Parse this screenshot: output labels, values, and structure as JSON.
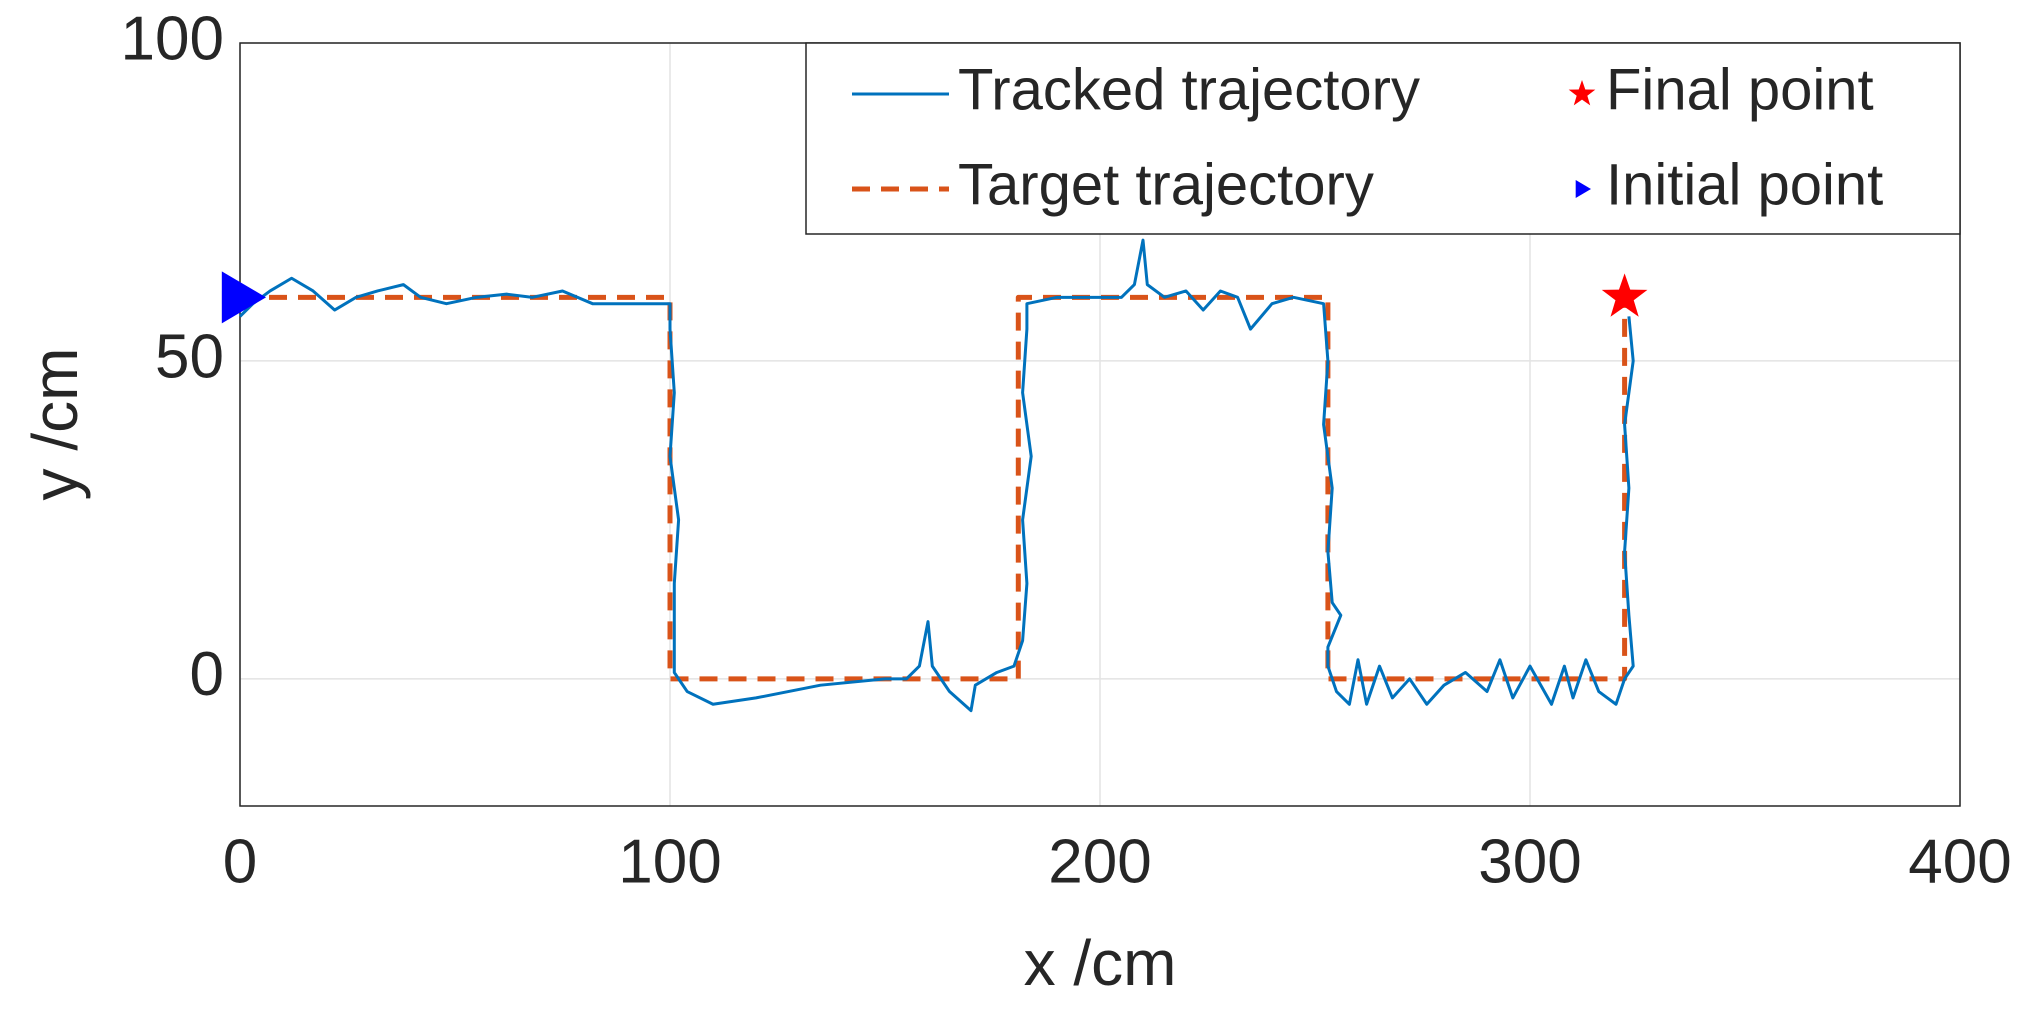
{
  "chart_data": {
    "type": "line",
    "xlabel": "x /cm",
    "ylabel": "y /cm",
    "xlim": [
      0,
      400
    ],
    "ylim": [
      -20,
      100
    ],
    "xticks": [
      0,
      100,
      200,
      300,
      400
    ],
    "yticks": [
      0,
      50,
      100
    ],
    "grid": true,
    "legend": "upper right",
    "series": [
      {
        "name": "Tracked trajectory",
        "color": "#0072bd",
        "style": "solid",
        "x": [
          0,
          3,
          7,
          12,
          17,
          22,
          27,
          32,
          38,
          42,
          48,
          55,
          62,
          68,
          75,
          82,
          90,
          97,
          100,
          100,
          101,
          100,
          102,
          101,
          101,
          101,
          104,
          110,
          120,
          135,
          150,
          155,
          158,
          160,
          161,
          165,
          170,
          171,
          176,
          180,
          182,
          183,
          182,
          184,
          182,
          183,
          183,
          190,
          200,
          205,
          208,
          210,
          211,
          215,
          220,
          224,
          228,
          232,
          235,
          240,
          245,
          252,
          253,
          252,
          254,
          253,
          254,
          256,
          253,
          253,
          255,
          258,
          260,
          262,
          265,
          268,
          272,
          276,
          280,
          285,
          290,
          293,
          296,
          300,
          305,
          308,
          310,
          313,
          316,
          318,
          320,
          322,
          324,
          323,
          322,
          323,
          322,
          324,
          323
        ],
        "values": [
          57,
          59,
          61,
          63,
          61,
          58,
          60,
          61,
          62,
          60,
          59,
          60,
          60.5,
          60,
          61,
          59,
          59,
          59,
          59,
          55,
          45,
          35,
          25,
          15,
          5,
          1,
          -2,
          -4,
          -3,
          -1,
          0,
          0,
          2,
          9,
          2,
          -2,
          -5,
          -1,
          1,
          2,
          6,
          15,
          25,
          35,
          45,
          55,
          59,
          60,
          60,
          60,
          62,
          69,
          62,
          60,
          61,
          58,
          61,
          60,
          55,
          59,
          60,
          59,
          50,
          40,
          30,
          20,
          12,
          10,
          5,
          2,
          -2,
          -4,
          3,
          -4,
          2,
          -3,
          0,
          -4,
          -1,
          1,
          -2,
          3,
          -3,
          2,
          -4,
          2,
          -3,
          3,
          -2,
          -3,
          -4,
          0,
          2,
          10,
          20,
          30,
          40,
          50,
          57
        ]
      },
      {
        "name": "Target trajectory",
        "color": "#d95319",
        "style": "dashed",
        "x": [
          0,
          100,
          100,
          181,
          181,
          253,
          253,
          322,
          322
        ],
        "values": [
          60,
          60,
          0,
          0,
          60,
          60,
          0,
          0,
          60
        ]
      }
    ],
    "markers": [
      {
        "name": "Final point",
        "color": "#ff0000",
        "symbol": "star",
        "x": 322,
        "y": 60
      },
      {
        "name": "Initial point",
        "color": "#0000ff",
        "symbol": "triangle-right",
        "x": 0,
        "y": 60
      }
    ]
  }
}
